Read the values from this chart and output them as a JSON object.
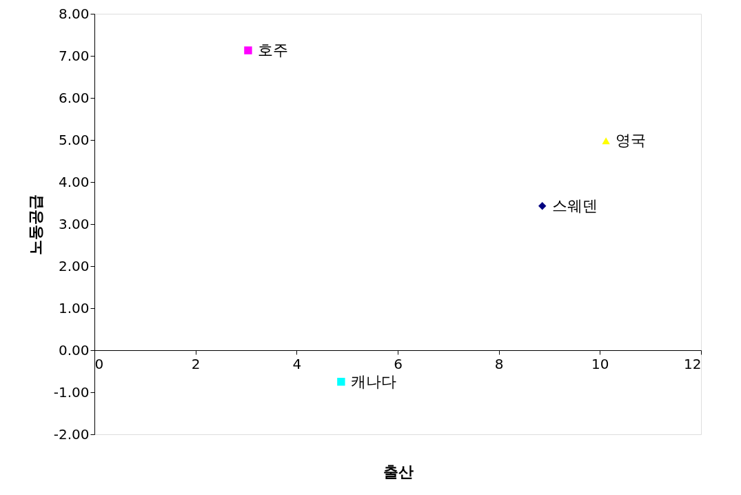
{
  "chart_data": {
    "type": "scatter",
    "xlabel": "출산",
    "ylabel": "노동공급",
    "series": [
      {
        "name": "스웨덴",
        "color": "#000080",
        "marker": "diamond",
        "x": [
          8.86
        ],
        "values": [
          3.43
        ]
      },
      {
        "name": "호주",
        "color": "#ff00ff",
        "marker": "square",
        "x": [
          3.04
        ],
        "values": [
          7.13
        ]
      },
      {
        "name": "영국",
        "color": "#ffff00",
        "marker": "triangle",
        "x": [
          10.12
        ],
        "values": [
          4.98
        ]
      },
      {
        "name": "캐나다",
        "color": "#00ffff",
        "marker": "square",
        "x": [
          4.88
        ],
        "values": [
          -0.75
        ]
      }
    ],
    "xlim": [
      0,
      12
    ],
    "xticks": [
      0,
      2,
      4,
      6,
      8,
      10,
      12
    ],
    "ylim": [
      -2,
      8
    ],
    "yticks": [
      {
        "value": -2,
        "label": "-2.00"
      },
      {
        "value": -1,
        "label": "-1.00"
      },
      {
        "value": 0,
        "label": "0.00"
      },
      {
        "value": 1,
        "label": "1.00"
      },
      {
        "value": 2,
        "label": "2.00"
      },
      {
        "value": 3,
        "label": "3.00"
      },
      {
        "value": 4,
        "label": "4.00"
      },
      {
        "value": 5,
        "label": "5.00"
      },
      {
        "value": 6,
        "label": "6.00"
      },
      {
        "value": 7,
        "label": "7.00"
      },
      {
        "value": 8,
        "label": "8.00"
      }
    ],
    "grid": false,
    "legend": false
  }
}
